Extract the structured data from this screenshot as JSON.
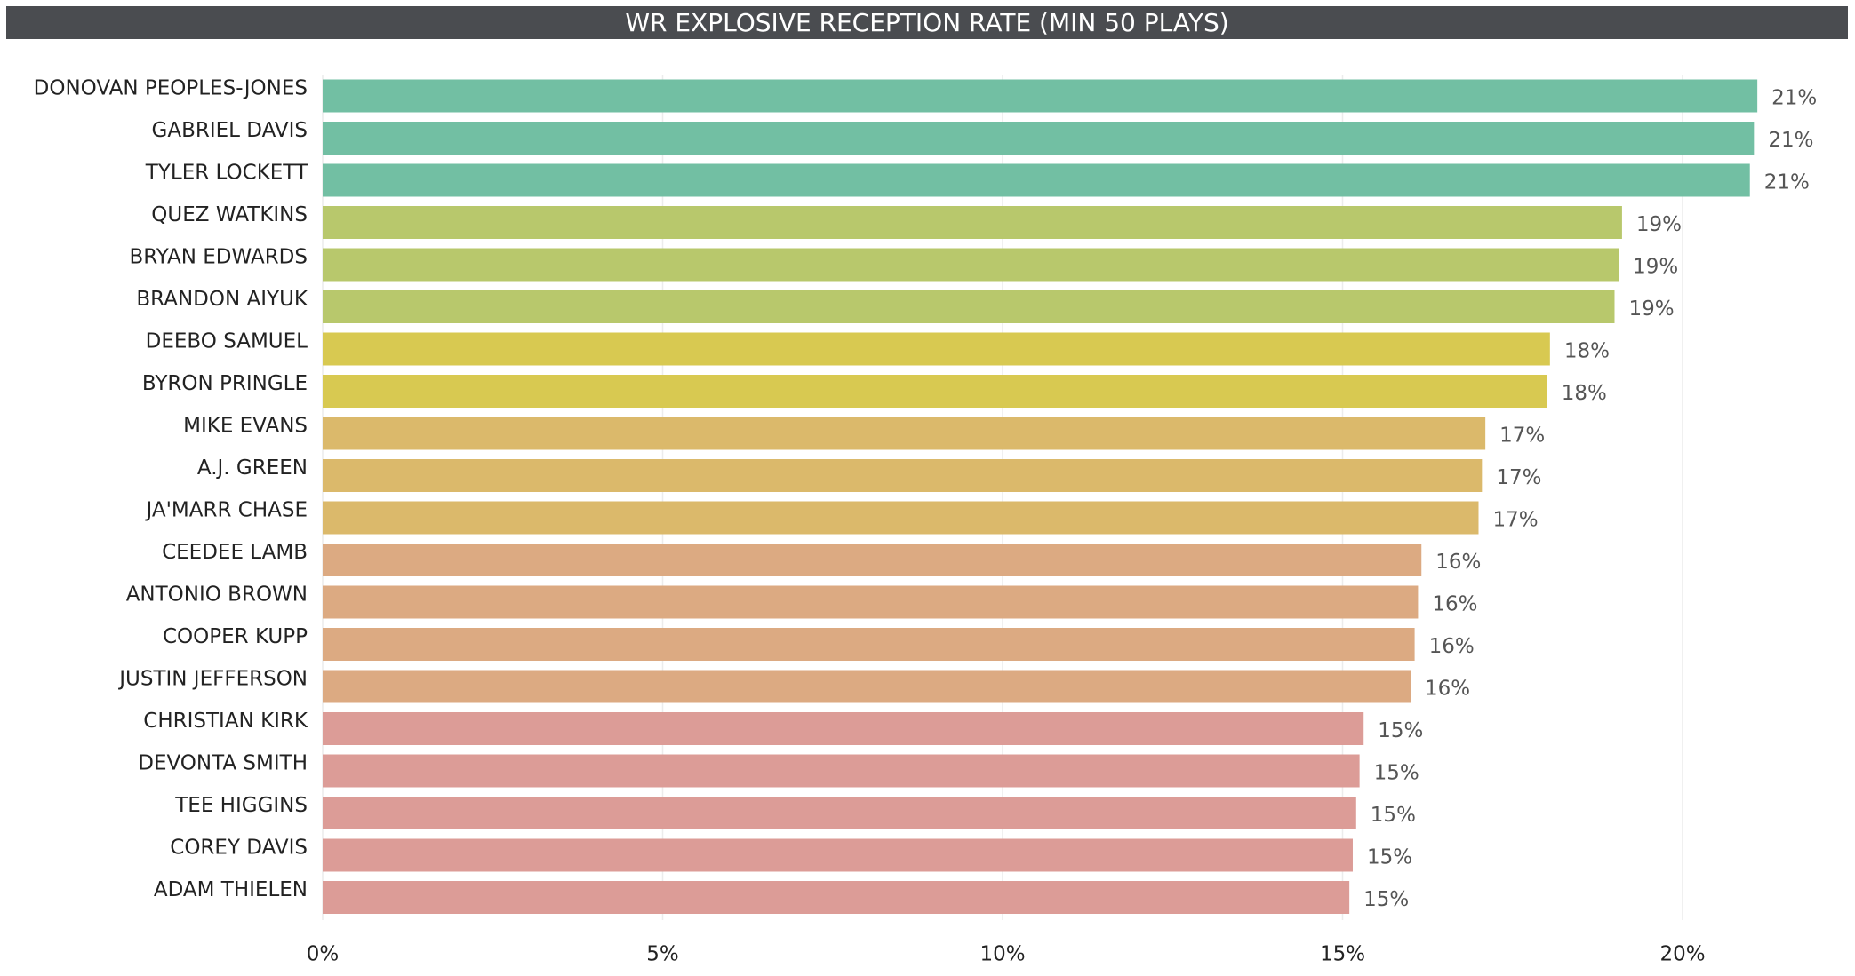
{
  "chart_data": {
    "type": "hbar",
    "title": "WR EXPLOSIVE RECEPTION RATE (MIN 50 PLAYS)",
    "categories": [
      "DONOVAN PEOPLES-JONES",
      "GABRIEL DAVIS",
      "TYLER LOCKETT",
      "QUEZ WATKINS",
      "BRYAN EDWARDS",
      "BRANDON AIYUK",
      "DEEBO SAMUEL",
      "BYRON PRINGLE",
      "MIKE EVANS",
      "A.J. GREEN",
      "JA'MARR CHASE",
      "CEEDEE LAMB",
      "ANTONIO BROWN",
      "COOPER KUPP",
      "JUSTIN JEFFERSON",
      "CHRISTIAN KIRK",
      "DEVONTA SMITH",
      "TEE HIGGINS",
      "COREY DAVIS",
      "ADAM THIELEN"
    ],
    "values": [
      21.1,
      21.05,
      20.99,
      19.11,
      19.06,
      19.0,
      18.05,
      18.01,
      17.1,
      17.05,
      17.0,
      16.16,
      16.11,
      16.06,
      16.0,
      15.31,
      15.25,
      15.2,
      15.15,
      15.1
    ],
    "value_labels": [
      "21%",
      "21%",
      "21%",
      "19%",
      "19%",
      "19%",
      "18%",
      "18%",
      "17%",
      "17%",
      "17%",
      "16%",
      "16%",
      "16%",
      "16%",
      "15%",
      "15%",
      "15%",
      "15%",
      "15%"
    ],
    "colors": [
      "#72bfa3",
      "#72bfa3",
      "#72bfa3",
      "#b8c86c",
      "#b8c86c",
      "#b8c86c",
      "#d8c951",
      "#d8c951",
      "#dbb96b",
      "#dbb96b",
      "#dbb96b",
      "#dcaa82",
      "#dcaa82",
      "#dcaa82",
      "#dcaa82",
      "#dc9c97",
      "#dc9c97",
      "#dc9c97",
      "#dc9c97",
      "#dc9c97"
    ],
    "xlim": [
      0,
      22.2
    ],
    "xticks": [
      {
        "value": 0,
        "label": "0%"
      },
      {
        "value": 5,
        "label": "5%"
      },
      {
        "value": 10,
        "label": "10%"
      },
      {
        "value": 15,
        "label": "15%"
      },
      {
        "value": 20,
        "label": "20%"
      }
    ],
    "grid": true
  }
}
